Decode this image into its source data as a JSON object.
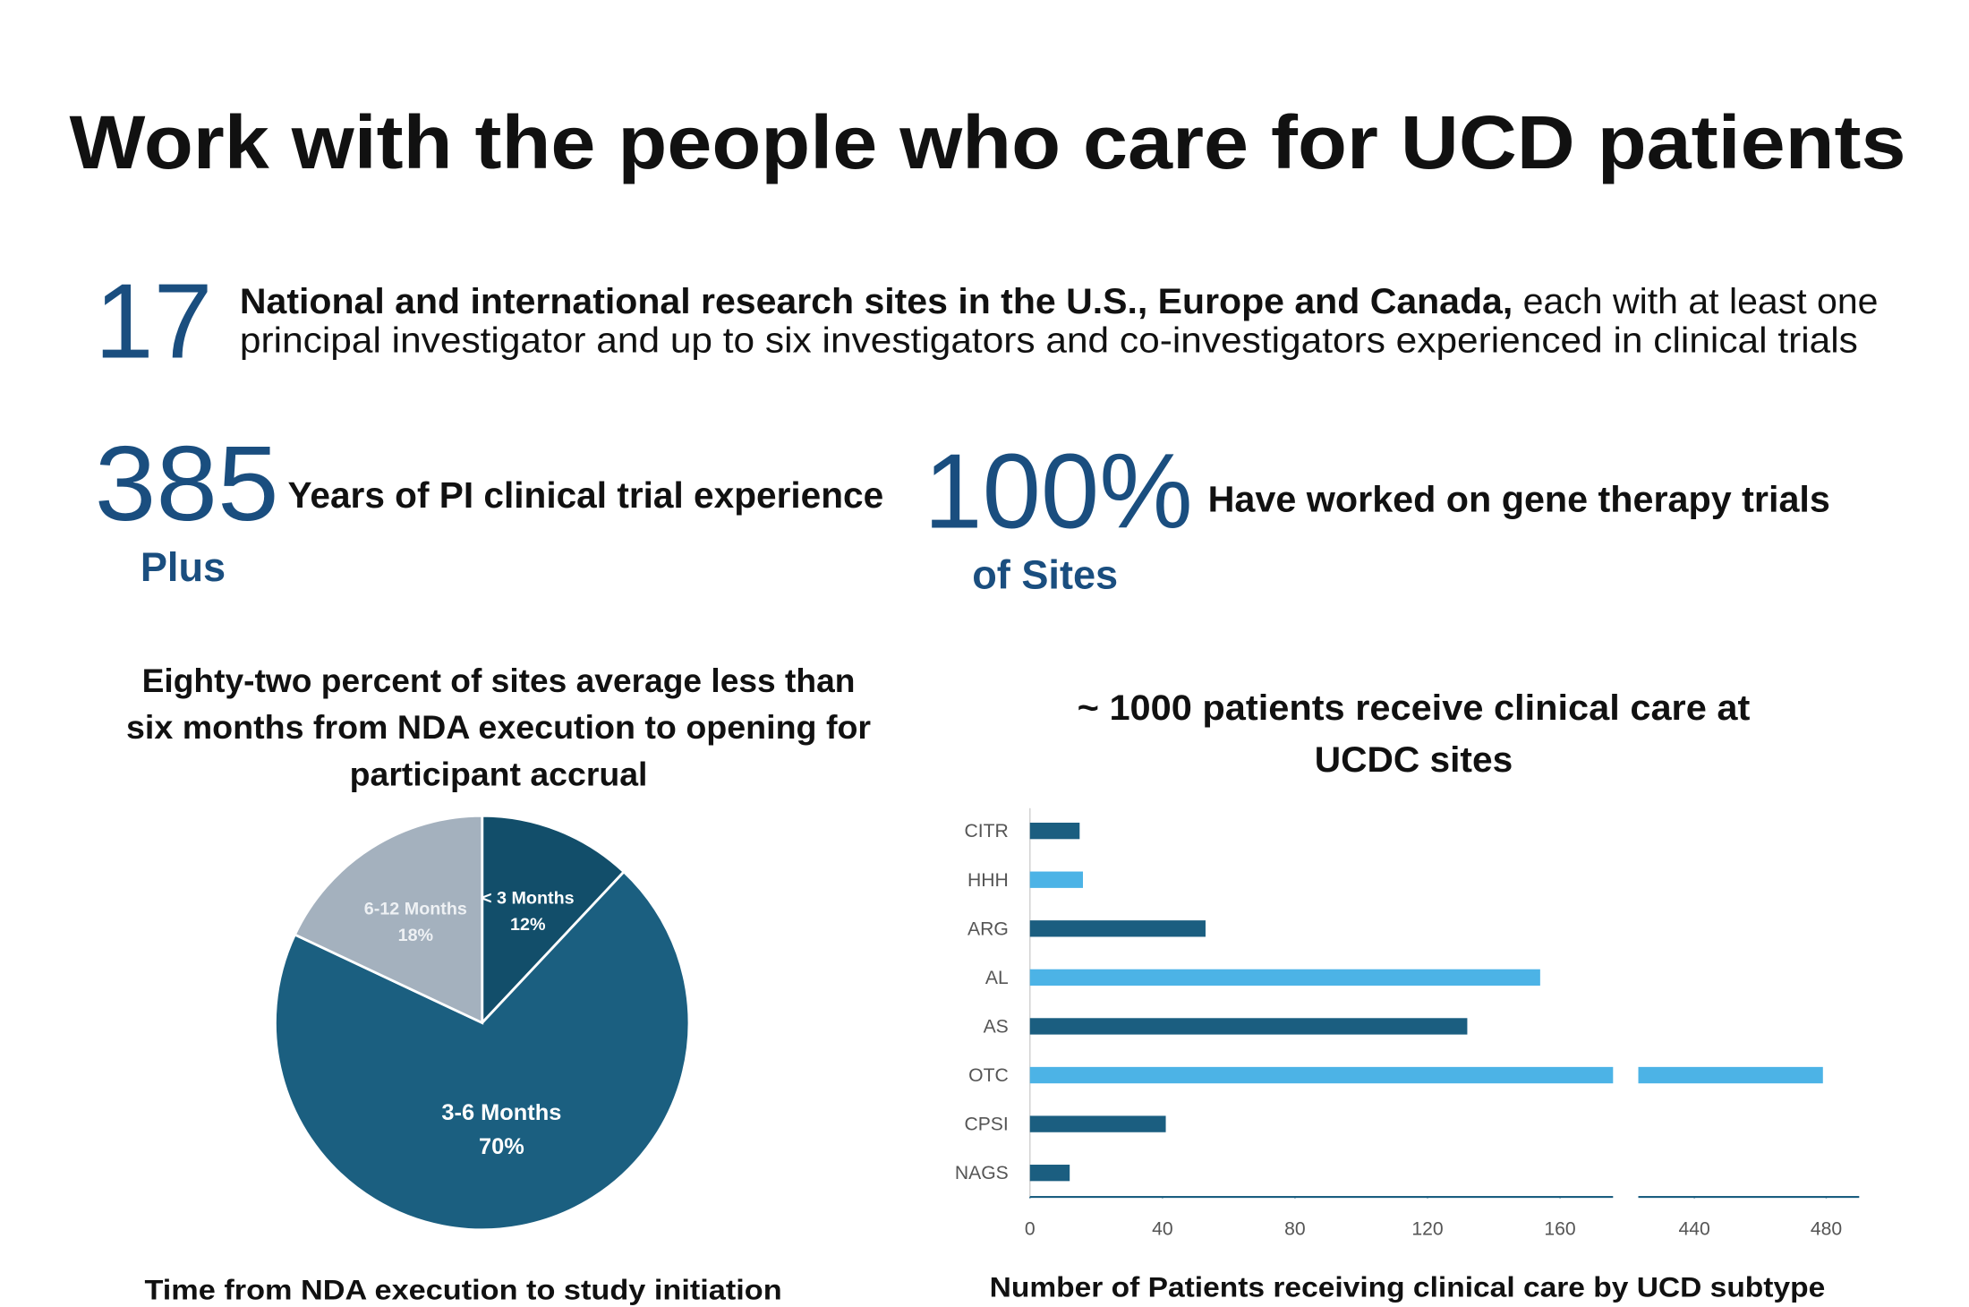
{
  "title": "Work with the people who care for UCD patients",
  "stats": [
    {
      "number": 17,
      "lead": "National and international research sites in the U.S., Europe and Canada,",
      "text": [
        "each with at least one",
        "principal investigator and up to six investigators and co-investigators experienced in clinical trials"
      ]
    },
    {
      "number": 385,
      "text": "Years of PI clinical trial experience",
      "sub": "Plus"
    },
    {
      "number": "100%",
      "text": "Have worked on gene therapy trials",
      "sub": "of Sites"
    }
  ],
  "chart_data": [
    {
      "type": "pie",
      "title": [
        "Eighty-two percent of sites average less than",
        "six months from NDA execution to opening for",
        "participant accrual"
      ],
      "caption": "Time from NDA execution to study initiation",
      "categories": [
        "< 3 Months",
        "3-6 Months",
        "6-12 Months"
      ],
      "values": [
        12,
        70,
        18
      ],
      "value_labels": [
        "12%",
        "70%",
        "18%"
      ],
      "colors": [
        "#124e6a",
        "#1b5f80",
        "#a4b1be"
      ]
    },
    {
      "type": "bar",
      "orientation": "horizontal",
      "title": [
        "~ 1000 patients receive clinical care at",
        "UCDC sites"
      ],
      "caption": "Number of Patients receiving clinical care by UCD subtype",
      "categories": [
        "CITR",
        "HHH",
        "ARG",
        "AL",
        "AS",
        "OTC",
        "CPSI",
        "NAGS"
      ],
      "values": [
        15,
        16,
        53,
        154,
        132,
        479,
        41,
        12
      ],
      "colors": [
        "#1b5e80",
        "#4cb3e6",
        "#1b5e80",
        "#4cb3e6",
        "#1b5e80",
        "#4cb3e6",
        "#1b5e80",
        "#1b5e80"
      ],
      "xlim": [
        0,
        490
      ],
      "xbreak": [
        176,
        423
      ],
      "xticks": [
        0,
        40,
        80,
        120,
        160,
        440,
        480
      ]
    }
  ]
}
